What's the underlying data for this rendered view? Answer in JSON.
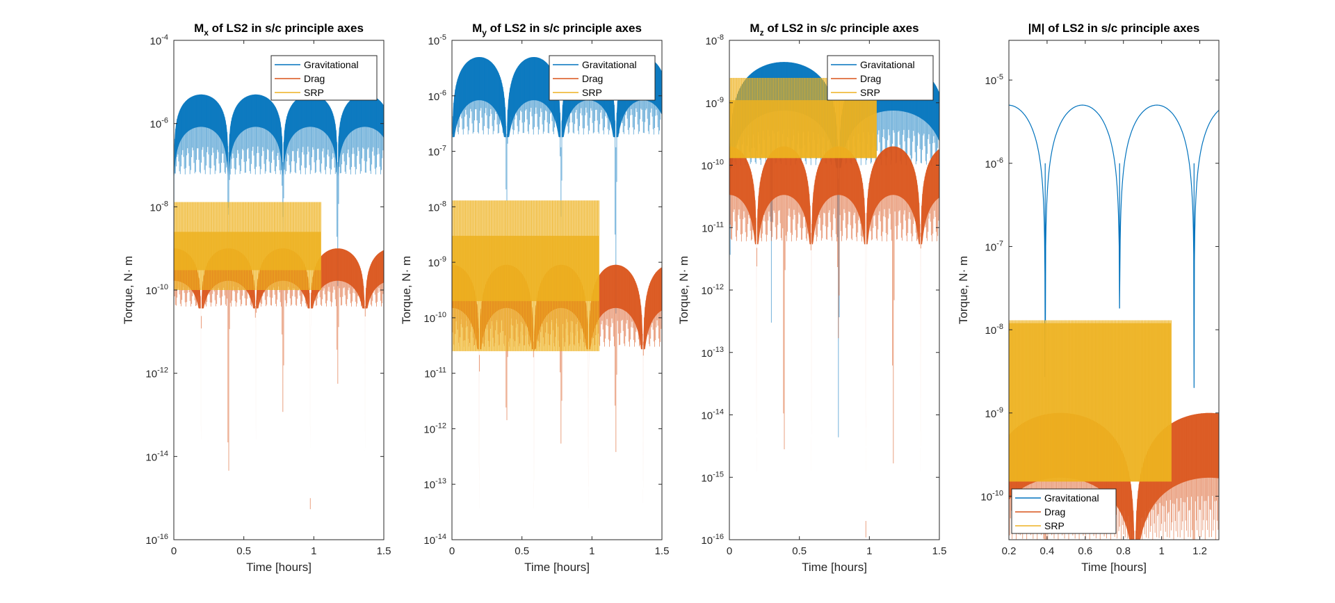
{
  "chart_data": [
    {
      "type": "line",
      "title": {
        "main": "M",
        "sub": "x",
        "rest": " of LS2 in s/c principle axes"
      },
      "xlabel": "Time [hours]",
      "ylabel": "Torque, N· m",
      "yscale": "log",
      "xlim": [
        0,
        1.5
      ],
      "ylim": [
        1e-16,
        0.0001
      ],
      "xticks": [
        0,
        0.5,
        1,
        1.5
      ],
      "xtick_labels": [
        "0",
        "0.5",
        "1",
        "1.5"
      ],
      "yticks": [
        {
          "value": 0.0001,
          "base": "10",
          "exp": "-4"
        },
        {
          "value": 1e-06,
          "base": "10",
          "exp": "-6"
        },
        {
          "value": 1e-08,
          "base": "10",
          "exp": "-8"
        },
        {
          "value": 1e-10,
          "base": "10",
          "exp": "-10"
        },
        {
          "value": 1e-12,
          "base": "10",
          "exp": "-12"
        },
        {
          "value": 1e-14,
          "base": "10",
          "exp": "-14"
        },
        {
          "value": 1e-16,
          "base": "10",
          "exp": "-16"
        }
      ],
      "legend": {
        "position": "top-right",
        "entries": [
          "Gravitational",
          "Drag",
          "SRP"
        ]
      },
      "series": [
        {
          "name": "Gravitational",
          "color": "#0072BD",
          "envelope": {
            "peak": 5e-06,
            "period_hours": 0.39,
            "phase_hours": 0,
            "floor": 6e-08,
            "nulls": [
              {
                "x": 0.39,
                "y": 3e-09
              },
              {
                "x": 0.78,
                "y": 4e-09
              },
              {
                "x": 1.17,
                "y": 5e-11
              }
            ]
          }
        },
        {
          "name": "Drag",
          "color": "#D95319",
          "envelope": {
            "peak": 1e-09,
            "period_hours": 0.39,
            "phase_hours": 0.195,
            "floor": 4e-11,
            "nulls": [
              {
                "x": 0.39,
                "y": 2e-16
              },
              {
                "x": 0.78,
                "y": 5e-14
              },
              {
                "x": 1.17,
                "y": 3e-13
              }
            ]
          }
        },
        {
          "name": "SRP",
          "color": "#EDB120",
          "band": {
            "x_start": 0.0,
            "x_end": 1.05,
            "top": 1.3e-08,
            "bottom": 1e-10,
            "dense_top": 2.5e-09,
            "dense_bottom": 3e-10
          }
        }
      ]
    },
    {
      "type": "line",
      "title": {
        "main": "M",
        "sub": "y",
        "rest": " of LS2 in s/c principle axes"
      },
      "xlabel": "Time [hours]",
      "ylabel": "Torque, N· m",
      "yscale": "log",
      "xlim": [
        0,
        1.5
      ],
      "ylim": [
        1e-14,
        1e-05
      ],
      "xticks": [
        0,
        0.5,
        1,
        1.5
      ],
      "xtick_labels": [
        "0",
        "0.5",
        "1",
        "1.5"
      ],
      "yticks": [
        {
          "value": 1e-05,
          "base": "10",
          "exp": "-5"
        },
        {
          "value": 1e-06,
          "base": "10",
          "exp": "-6"
        },
        {
          "value": 1e-07,
          "base": "10",
          "exp": "-7"
        },
        {
          "value": 1e-08,
          "base": "10",
          "exp": "-8"
        },
        {
          "value": 1e-09,
          "base": "10",
          "exp": "-9"
        },
        {
          "value": 1e-10,
          "base": "10",
          "exp": "-10"
        },
        {
          "value": 1e-11,
          "base": "10",
          "exp": "-11"
        },
        {
          "value": 1e-12,
          "base": "10",
          "exp": "-12"
        },
        {
          "value": 1e-13,
          "base": "10",
          "exp": "-13"
        },
        {
          "value": 1e-14,
          "base": "10",
          "exp": "-14"
        }
      ],
      "legend": {
        "position": "top-right",
        "entries": [
          "Gravitational",
          "Drag",
          "SRP"
        ]
      },
      "series": [
        {
          "name": "Gravitational",
          "color": "#0072BD",
          "envelope": {
            "peak": 5e-06,
            "period_hours": 0.39,
            "phase_hours": 0,
            "floor": 2e-07,
            "nulls": [
              {
                "x": 0.39,
                "y": 5e-09
              },
              {
                "x": 0.78,
                "y": 4e-09
              },
              {
                "x": 1.17,
                "y": 4e-11
              }
            ]
          }
        },
        {
          "name": "Drag",
          "color": "#D95319",
          "envelope": {
            "peak": 9e-10,
            "period_hours": 0.39,
            "phase_hours": 0.195,
            "floor": 3e-11,
            "nulls": [
              {
                "x": 0.39,
                "y": 5e-13
              },
              {
                "x": 0.78,
                "y": 3e-13
              },
              {
                "x": 1.17,
                "y": 2e-13
              }
            ]
          }
        },
        {
          "name": "SRP",
          "color": "#EDB120",
          "band": {
            "x_start": 0.0,
            "x_end": 1.05,
            "top": 1.3e-08,
            "bottom": 2.5e-11,
            "dense_top": 3e-09,
            "dense_bottom": 2e-10
          }
        }
      ]
    },
    {
      "type": "line",
      "title": {
        "main": "M",
        "sub": "z",
        "rest": " of LS2 in s/c principle axes"
      },
      "xlabel": "Time [hours]",
      "ylabel": "Torque, N· m",
      "yscale": "log",
      "xlim": [
        0,
        1.5
      ],
      "ylim": [
        1e-16,
        1e-08
      ],
      "xticks": [
        0,
        0.5,
        1,
        1.5
      ],
      "xtick_labels": [
        "0",
        "0.5",
        "1",
        "1.5"
      ],
      "yticks": [
        {
          "value": 1e-08,
          "base": "10",
          "exp": "-8"
        },
        {
          "value": 1e-09,
          "base": "10",
          "exp": "-9"
        },
        {
          "value": 1e-10,
          "base": "10",
          "exp": "-10"
        },
        {
          "value": 1e-11,
          "base": "10",
          "exp": "-11"
        },
        {
          "value": 1e-12,
          "base": "10",
          "exp": "-12"
        },
        {
          "value": 1e-13,
          "base": "10",
          "exp": "-13"
        },
        {
          "value": 1e-14,
          "base": "10",
          "exp": "-14"
        },
        {
          "value": 1e-15,
          "base": "10",
          "exp": "-15"
        },
        {
          "value": 1e-16,
          "base": "10",
          "exp": "-16"
        }
      ],
      "legend": {
        "position": "top-right",
        "entries": [
          "Gravitational",
          "Drag",
          "SRP"
        ]
      },
      "series": [
        {
          "name": "Gravitational",
          "color": "#0072BD",
          "envelope": {
            "peak": 4.5e-09,
            "period_hours": 0.78,
            "phase_hours": 0,
            "floor": 1e-10,
            "nulls": [
              {
                "x": 0.0,
                "y": 1e-14
              },
              {
                "x": 0.78,
                "y": 1e-15
              },
              {
                "x": 0.3,
                "y": 3e-13
              }
            ]
          }
        },
        {
          "name": "Drag",
          "color": "#D95319",
          "envelope": {
            "peak": 2e-10,
            "period_hours": 0.39,
            "phase_hours": 0.195,
            "floor": 6e-12,
            "nulls": [
              {
                "x": 0.39,
                "y": 2e-16
              },
              {
                "x": 0.78,
                "y": 1e-13
              },
              {
                "x": 1.17,
                "y": 5e-16
              }
            ]
          }
        },
        {
          "name": "SRP",
          "color": "#EDB120",
          "band": {
            "x_start": 0.0,
            "x_end": 1.05,
            "top": 2.5e-09,
            "bottom": 1.3e-10,
            "dense_top": 1.1e-09,
            "dense_bottom": 1.3e-10
          }
        }
      ]
    },
    {
      "type": "line",
      "title": {
        "main": "|M|",
        "sub": "",
        "rest": " of LS2 in s/c principle axes"
      },
      "xlabel": "Time [hours]",
      "ylabel": "Torque, N· m",
      "yscale": "log",
      "xlim": [
        0.2,
        1.3
      ],
      "ylim": [
        3e-11,
        3e-05
      ],
      "xticks": [
        0.2,
        0.4,
        0.6,
        0.8,
        1.0,
        1.2
      ],
      "xtick_labels": [
        "0.2",
        "0.4",
        "0.6",
        "0.8",
        "1",
        "1.2"
      ],
      "yticks": [
        {
          "value": 1e-05,
          "base": "10",
          "exp": "-5"
        },
        {
          "value": 1e-06,
          "base": "10",
          "exp": "-6"
        },
        {
          "value": 1e-07,
          "base": "10",
          "exp": "-7"
        },
        {
          "value": 1e-08,
          "base": "10",
          "exp": "-8"
        },
        {
          "value": 1e-09,
          "base": "10",
          "exp": "-9"
        },
        {
          "value": 1e-10,
          "base": "10",
          "exp": "-10"
        }
      ],
      "legend": {
        "position": "bottom-left",
        "entries": [
          "Gravitational",
          "Drag",
          "SRP"
        ]
      },
      "series": [
        {
          "name": "Gravitational",
          "color": "#0072BD",
          "curve": {
            "peak": 5e-06,
            "period_hours": 0.39,
            "phase_hours": 0,
            "nulls": [
              {
                "x": 0.39,
                "y": 2.7e-09
              },
              {
                "x": 0.78,
                "y": 1.8e-08
              },
              {
                "x": 1.17,
                "y": 2e-09
              }
            ]
          }
        },
        {
          "name": "Drag",
          "color": "#D95319",
          "envelope": {
            "peak": 1e-09,
            "period_hours": 0.78,
            "phase_hours": 0.08,
            "floor": 3e-11,
            "nulls": [
              {
                "x": 0.39,
                "y": 3e-11
              },
              {
                "x": 1.17,
                "y": 3e-11
              }
            ]
          }
        },
        {
          "name": "SRP",
          "color": "#EDB120",
          "band": {
            "x_start": 0.2,
            "x_end": 1.05,
            "top": 1.3e-08,
            "bottom": 1.5e-10,
            "dense_top": 1.2e-08,
            "dense_bottom": 1.5e-10
          }
        }
      ]
    }
  ]
}
